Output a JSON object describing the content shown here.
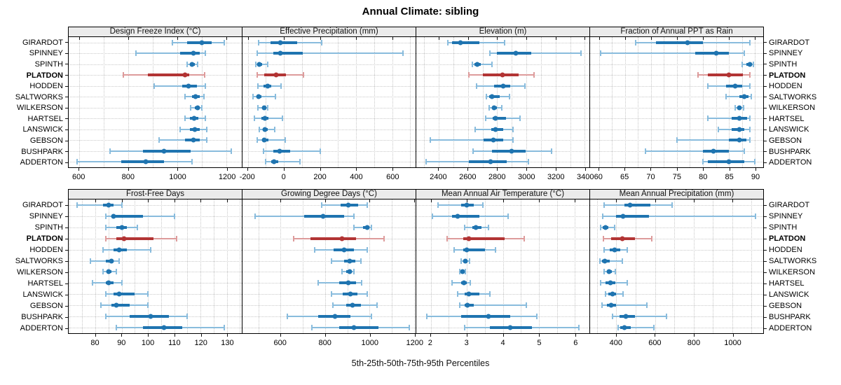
{
  "colors": {
    "blue_main": "#1f74b0",
    "blue_light": "#89bcdd",
    "red_main": "#b23434",
    "red_light": "#dd9b9b",
    "strip_bg": "#ebebeb",
    "grid": "#c6c6c6",
    "border": "#000000"
  },
  "chart_data": {
    "type": "scatter",
    "subtype": "trellis percentile dot plot: thin whisker = 5th-95th, thick bar = 25th-75th, dot = 50th percentile",
    "title": "Annual Climate: sibling",
    "xlabel": "5th-25th-50th-75th-95th Percentiles",
    "percentiles": [
      5,
      25,
      50,
      75,
      95
    ],
    "categories": [
      "GIRARDOT",
      "SPINNEY",
      "SPINTH",
      "PLATDON",
      "HODDEN",
      "SALTWORKS",
      "WILKERSON",
      "HARTSEL",
      "LANSWICK",
      "GEBSON",
      "BUSHPARK",
      "ADDERTON"
    ],
    "highlight": "PLATDON",
    "panels": [
      {
        "title": "Design Freeze Index (°C)",
        "row": 0,
        "xlim": [
          557,
          1262
        ],
        "ticks": [
          600,
          800,
          1000,
          1200
        ],
        "minor_step": 100,
        "series": [
          [
            980,
            1040,
            1100,
            1140,
            1190
          ],
          [
            830,
            1010,
            1065,
            1090,
            1115
          ],
          [
            1040,
            1052,
            1060,
            1070,
            1082
          ],
          [
            780,
            880,
            1030,
            1048,
            1110
          ],
          [
            905,
            1020,
            1045,
            1080,
            1115
          ],
          [
            1030,
            1060,
            1075,
            1090,
            1108
          ],
          [
            1055,
            1070,
            1082,
            1092,
            1100
          ],
          [
            1030,
            1052,
            1068,
            1085,
            1115
          ],
          [
            1012,
            1050,
            1070,
            1090,
            1118
          ],
          [
            925,
            1030,
            1065,
            1090,
            1120
          ],
          [
            725,
            860,
            945,
            1055,
            1220
          ],
          [
            590,
            770,
            870,
            945,
            1060
          ]
        ]
      },
      {
        "title": "Effective Precipitation (mm)",
        "row": 0,
        "xlim": [
          -230,
          730
        ],
        "ticks": [
          -200,
          0,
          200,
          400,
          600
        ],
        "minor_step": 100,
        "series": [
          [
            -140,
            -75,
            -20,
            75,
            210
          ],
          [
            -150,
            -60,
            -20,
            105,
            660
          ],
          [
            -155,
            -148,
            -138,
            -120,
            -90
          ],
          [
            -148,
            -110,
            -45,
            10,
            110
          ],
          [
            -145,
            -115,
            -90,
            -70,
            -18
          ],
          [
            -170,
            -150,
            -142,
            -125,
            -48
          ],
          [
            -145,
            -120,
            -110,
            -100,
            -90
          ],
          [
            -165,
            -125,
            -105,
            -85,
            -10
          ],
          [
            -138,
            -118,
            -105,
            -90,
            -50
          ],
          [
            -148,
            -122,
            -108,
            -85,
            8
          ],
          [
            -112,
            -60,
            -25,
            35,
            200
          ],
          [
            -100,
            -70,
            -55,
            -30,
            90
          ]
        ]
      },
      {
        "title": "Elevation (m)",
        "row": 0,
        "xlim": [
          2246,
          3432
        ],
        "ticks": [
          2400,
          2600,
          2800,
          3000,
          3200,
          3400
        ],
        "minor_step": 100,
        "series": [
          [
            2460,
            2490,
            2550,
            2680,
            2850
          ],
          [
            2750,
            2800,
            2930,
            3035,
            3375
          ],
          [
            2630,
            2645,
            2665,
            2690,
            2765
          ],
          [
            2605,
            2700,
            2835,
            2945,
            3055
          ],
          [
            2660,
            2780,
            2840,
            2890,
            2990
          ],
          [
            2725,
            2745,
            2765,
            2815,
            2885
          ],
          [
            2745,
            2765,
            2780,
            2800,
            2830
          ],
          [
            2720,
            2770,
            2790,
            2860,
            2955
          ],
          [
            2650,
            2760,
            2790,
            2840,
            2910
          ],
          [
            2340,
            2705,
            2775,
            2840,
            2910
          ],
          [
            2635,
            2765,
            2900,
            2995,
            3175
          ],
          [
            2315,
            2605,
            2755,
            2865,
            3015
          ]
        ]
      },
      {
        "title": "Fraction of Annual PPT as Rain",
        "row": 0,
        "xlim": [
          58.3,
          91.6
        ],
        "ticks": [
          60,
          65,
          70,
          75,
          80,
          85,
          90
        ],
        "minor_step": 2.5,
        "series": [
          [
            67,
            71,
            77,
            80,
            89
          ],
          [
            60.3,
            78.5,
            82.5,
            85,
            88
          ],
          [
            87.5,
            88.4,
            89,
            89.3,
            89.7
          ],
          [
            79,
            81,
            85,
            87.7,
            89
          ],
          [
            81,
            84.5,
            86.2,
            87.5,
            89
          ],
          [
            84.5,
            87,
            88,
            88.8,
            89.3
          ],
          [
            86.2,
            86.6,
            87,
            87.4,
            87.8
          ],
          [
            81,
            85.5,
            87,
            88.5,
            89
          ],
          [
            83,
            85.5,
            87,
            88,
            89
          ],
          [
            75,
            85,
            87,
            88.3,
            89
          ],
          [
            69,
            80,
            82,
            85,
            88
          ],
          [
            80,
            81,
            85,
            88,
            90
          ]
        ]
      },
      {
        "title": "Frost-Free Days",
        "row": 1,
        "xlim": [
          69.8,
          135.7
        ],
        "ticks": [
          80,
          90,
          100,
          110,
          120,
          130
        ],
        "minor_step": 5,
        "series": [
          [
            73,
            83,
            85,
            87,
            90
          ],
          [
            84,
            86,
            87,
            98,
            110
          ],
          [
            84,
            88,
            90,
            92,
            96
          ],
          [
            84,
            88,
            91,
            102,
            111
          ],
          [
            83,
            87,
            89,
            92,
            101
          ],
          [
            78,
            84,
            86,
            87,
            89
          ],
          [
            83,
            84.5,
            85,
            86,
            88
          ],
          [
            79,
            84,
            85,
            87,
            90
          ],
          [
            84,
            87,
            89,
            95,
            100
          ],
          [
            82,
            86,
            88,
            93,
            100
          ],
          [
            84,
            93,
            101,
            108,
            115
          ],
          [
            88,
            98,
            106,
            113,
            129
          ]
        ]
      },
      {
        "title": "Growing Degree Days (°C)",
        "row": 1,
        "xlim": [
          429,
          1207
        ],
        "ticks": [
          600,
          800,
          1000,
          1200
        ],
        "minor_step": 100,
        "series": [
          [
            785,
            870,
            905,
            950,
            990
          ],
          [
            485,
            705,
            790,
            885,
            930
          ],
          [
            930,
            970,
            990,
            1000,
            1010
          ],
          [
            660,
            735,
            875,
            940,
            1065
          ],
          [
            755,
            840,
            885,
            930,
            990
          ],
          [
            830,
            885,
            910,
            935,
            960
          ],
          [
            875,
            895,
            910,
            920,
            930
          ],
          [
            770,
            865,
            905,
            940,
            965
          ],
          [
            830,
            880,
            915,
            945,
            990
          ],
          [
            835,
            895,
            925,
            960,
            1035
          ],
          [
            630,
            770,
            845,
            915,
            1010
          ],
          [
            740,
            865,
            930,
            1040,
            1180
          ]
        ]
      },
      {
        "title": "Mean Annual Air Temperature (°C)",
        "row": 1,
        "xlim": [
          1.6,
          6.4
        ],
        "ticks": [
          2,
          3,
          4,
          5,
          6
        ],
        "minor_step": 0.5,
        "series": [
          [
            2.2,
            2.85,
            3.0,
            3.2,
            3.45
          ],
          [
            2.05,
            2.6,
            2.75,
            3.35,
            4.15
          ],
          [
            2.95,
            3.15,
            3.25,
            3.4,
            3.6
          ],
          [
            2.45,
            2.9,
            3.05,
            4.05,
            4.6
          ],
          [
            2.65,
            2.9,
            3.0,
            3.5,
            3.8
          ],
          [
            2.85,
            2.92,
            2.97,
            3.02,
            3.07
          ],
          [
            2.8,
            2.85,
            2.88,
            2.92,
            2.96
          ],
          [
            2.6,
            2.85,
            2.93,
            3.0,
            3.1
          ],
          [
            2.75,
            2.95,
            3.05,
            3.35,
            3.65
          ],
          [
            2.8,
            2.95,
            3.02,
            3.2,
            4.65
          ],
          [
            1.9,
            2.85,
            3.6,
            4.2,
            4.95
          ],
          [
            2.95,
            3.65,
            4.2,
            4.8,
            6.1
          ]
        ]
      },
      {
        "title": "Mean Annual Precipitation (mm)",
        "row": 1,
        "xlim": [
          264,
          1160
        ],
        "ticks": [
          400,
          600,
          800,
          1000
        ],
        "minor_step": 100,
        "series": [
          [
            335,
            440,
            470,
            575,
            690
          ],
          [
            330,
            400,
            435,
            570,
            1120
          ],
          [
            320,
            330,
            343,
            360,
            390
          ],
          [
            333,
            373,
            430,
            495,
            585
          ],
          [
            337,
            365,
            390,
            420,
            457
          ],
          [
            315,
            325,
            340,
            365,
            430
          ],
          [
            337,
            350,
            362,
            375,
            395
          ],
          [
            320,
            345,
            368,
            395,
            458
          ],
          [
            343,
            360,
            380,
            400,
            433
          ],
          [
            325,
            350,
            372,
            400,
            557
          ],
          [
            380,
            415,
            450,
            495,
            660
          ],
          [
            410,
            420,
            440,
            475,
            595
          ]
        ]
      }
    ]
  }
}
